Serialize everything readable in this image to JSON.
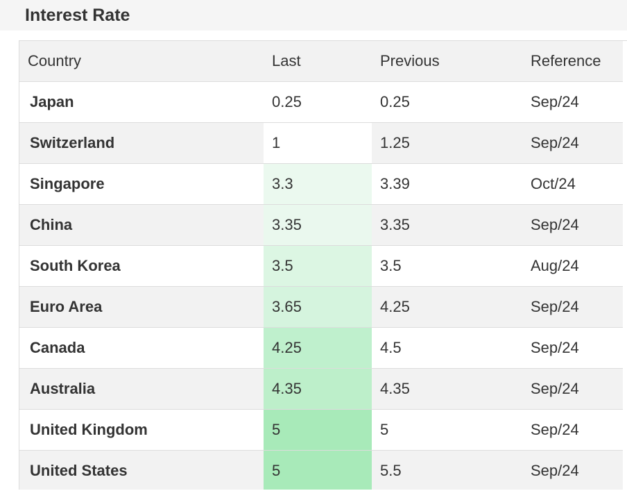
{
  "title": "Interest Rate",
  "columns": [
    "Country",
    "Last",
    "Previous",
    "Reference"
  ],
  "rows": [
    {
      "country": "Japan",
      "last": "0.25",
      "previous": "0.25",
      "reference": "Sep/24",
      "heat": "#ffffff"
    },
    {
      "country": "Switzerland",
      "last": "1",
      "previous": "1.25",
      "reference": "Sep/24",
      "heat": "#ffffff"
    },
    {
      "country": "Singapore",
      "last": "3.3",
      "previous": "3.39",
      "reference": "Oct/24",
      "heat": "#ebf9ef"
    },
    {
      "country": "China",
      "last": "3.35",
      "previous": "3.35",
      "reference": "Sep/24",
      "heat": "#eaf8ee"
    },
    {
      "country": "South Korea",
      "last": "3.5",
      "previous": "3.5",
      "reference": "Aug/24",
      "heat": "#dcf6e3"
    },
    {
      "country": "Euro Area",
      "last": "3.65",
      "previous": "4.25",
      "reference": "Sep/24",
      "heat": "#d5f4de"
    },
    {
      "country": "Canada",
      "last": "4.25",
      "previous": "4.5",
      "reference": "Sep/24",
      "heat": "#bff0cd"
    },
    {
      "country": "Australia",
      "last": "4.35",
      "previous": "4.35",
      "reference": "Sep/24",
      "heat": "#bdefca"
    },
    {
      "country": "United Kingdom",
      "last": "5",
      "previous": "5",
      "reference": "Sep/24",
      "heat": "#a8eab9"
    },
    {
      "country": "United States",
      "last": "5",
      "previous": "5.5",
      "reference": "Sep/24",
      "heat": "#a8eab9"
    }
  ]
}
